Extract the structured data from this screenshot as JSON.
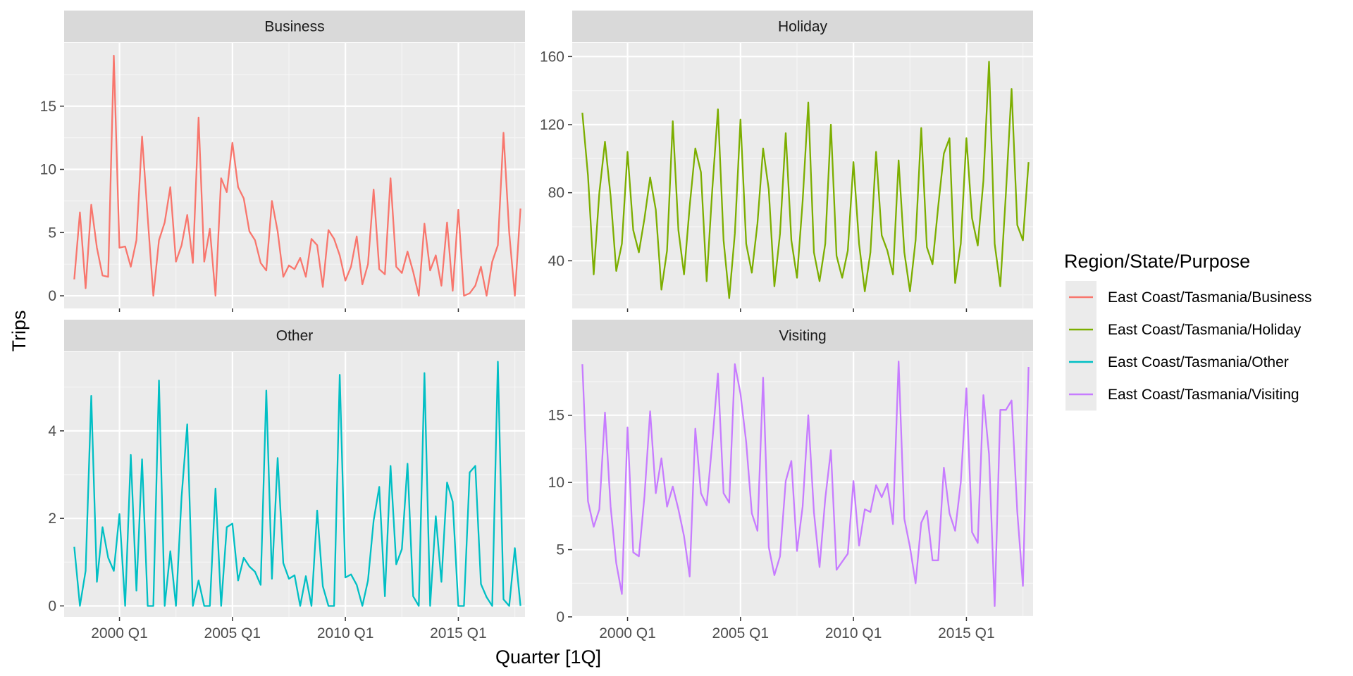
{
  "chart_data": {
    "type": "line",
    "xlabel": "Quarter [1Q]",
    "ylabel": "Trips",
    "x_tick_labels": [
      "2000 Q1",
      "2005 Q1",
      "2010 Q1",
      "2015 Q1"
    ],
    "x_tick_years": [
      2000,
      2005,
      2010,
      2015
    ],
    "x_range": [
      1997.55,
      2017.95
    ],
    "x_start": 1998.0,
    "x_step": 0.25,
    "legend": {
      "title": "Region/State/Purpose",
      "entries": [
        "East Coast/Tasmania/Business",
        "East Coast/Tasmania/Holiday",
        "East Coast/Tasmania/Other",
        "East Coast/Tasmania/Visiting"
      ]
    },
    "panels": [
      {
        "title": "Business",
        "color": "#F8766D",
        "ylim": [
          -1,
          20
        ],
        "yticks": [
          0,
          5,
          10,
          15
        ],
        "minor_yticks": [
          2.5,
          7.5,
          12.5,
          17.5
        ],
        "values": [
          1.3,
          6.6,
          0.6,
          7.2,
          3.8,
          1.6,
          1.5,
          19.0,
          3.8,
          3.9,
          2.3,
          4.4,
          12.6,
          6.2,
          0.0,
          4.4,
          5.8,
          8.6,
          2.7,
          4.0,
          6.4,
          2.6,
          14.1,
          2.7,
          5.3,
          0.0,
          9.3,
          8.2,
          12.1,
          8.6,
          7.7,
          5.1,
          4.4,
          2.6,
          2.0,
          7.5,
          5.1,
          1.5,
          2.4,
          2.1,
          3.0,
          1.5,
          4.5,
          4.0,
          0.7,
          5.2,
          4.5,
          3.2,
          1.2,
          2.3,
          4.7,
          0.9,
          2.5,
          8.4,
          2.1,
          1.7,
          9.3,
          2.3,
          1.8,
          3.5,
          1.9,
          0.0,
          5.7,
          2.0,
          3.2,
          0.8,
          5.8,
          0.4,
          6.8,
          0.0,
          0.2,
          0.8,
          2.3,
          0.0,
          2.7,
          4.0,
          12.9,
          5.0,
          0.0,
          6.9
        ]
      },
      {
        "title": "Holiday",
        "color": "#7CAE00",
        "ylim": [
          12,
          168
        ],
        "yticks": [
          40,
          80,
          120,
          160
        ],
        "minor_yticks": [
          20,
          60,
          100,
          140
        ],
        "values": [
          127,
          90,
          32,
          80,
          110,
          78,
          34,
          50,
          104,
          58,
          45,
          65,
          89,
          70,
          23,
          46,
          122,
          58,
          32,
          72,
          106,
          92,
          28,
          82,
          129,
          52,
          18,
          56,
          123,
          50,
          33,
          62,
          106,
          82,
          25,
          56,
          115,
          52,
          30,
          75,
          133,
          45,
          28,
          50,
          120,
          43,
          30,
          46,
          98,
          50,
          22,
          45,
          104,
          55,
          46,
          32,
          99,
          45,
          22,
          52,
          118,
          48,
          38,
          72,
          103,
          112,
          27,
          50,
          112,
          65,
          49,
          87,
          157,
          50,
          25,
          80,
          141,
          61,
          52,
          98
        ]
      },
      {
        "title": "Other",
        "color": "#00BFC4",
        "ylim": [
          -0.25,
          5.8
        ],
        "yticks": [
          0,
          2,
          4
        ],
        "minor_yticks": [
          1,
          3,
          5
        ],
        "values": [
          1.35,
          0.0,
          0.8,
          4.8,
          0.55,
          1.8,
          1.1,
          0.8,
          2.1,
          0.0,
          3.45,
          0.35,
          3.35,
          0.0,
          0.0,
          5.15,
          0.0,
          1.25,
          0.0,
          2.5,
          4.15,
          0.0,
          0.58,
          0.0,
          0.0,
          2.68,
          0.0,
          1.8,
          1.88,
          0.58,
          1.1,
          0.9,
          0.78,
          0.48,
          4.92,
          0.62,
          3.38,
          0.98,
          0.62,
          0.7,
          0.0,
          0.68,
          0.0,
          2.18,
          0.45,
          0.0,
          0.0,
          5.28,
          0.65,
          0.72,
          0.48,
          0.0,
          0.58,
          1.95,
          2.72,
          0.22,
          3.2,
          0.95,
          1.3,
          3.25,
          0.22,
          0.0,
          5.32,
          0.0,
          2.05,
          0.55,
          2.82,
          2.38,
          0.0,
          0.0,
          3.05,
          3.2,
          0.5,
          0.2,
          0.0,
          5.58,
          0.15,
          0.0,
          1.32,
          0.0
        ]
      },
      {
        "title": "Visiting",
        "color": "#C77CFF",
        "ylim": [
          0,
          19.7
        ],
        "yticks": [
          0,
          5,
          10,
          15
        ],
        "minor_yticks": [
          2.5,
          7.5,
          12.5,
          17.5
        ],
        "values": [
          18.8,
          8.6,
          6.7,
          8.0,
          15.2,
          8.2,
          4.0,
          1.7,
          14.1,
          4.8,
          4.5,
          9.0,
          15.3,
          9.2,
          11.8,
          8.2,
          9.7,
          8.0,
          6.0,
          3.0,
          14.0,
          9.2,
          8.3,
          13.0,
          18.1,
          9.2,
          8.5,
          18.8,
          16.6,
          13.0,
          7.7,
          6.4,
          17.8,
          5.2,
          3.1,
          4.5,
          10.1,
          11.6,
          4.9,
          8.2,
          15.0,
          7.8,
          3.7,
          8.8,
          12.4,
          3.5,
          4.1,
          4.7,
          10.1,
          5.3,
          8.0,
          7.8,
          9.8,
          8.9,
          9.9,
          6.9,
          19.0,
          7.3,
          5.2,
          2.5,
          7.0,
          7.9,
          4.2,
          4.2,
          11.1,
          7.7,
          6.4,
          10.0,
          17.0,
          6.3,
          5.5,
          16.5,
          12.1,
          0.8,
          15.4,
          15.4,
          16.1,
          7.8,
          2.3,
          18.6
        ]
      }
    ]
  }
}
